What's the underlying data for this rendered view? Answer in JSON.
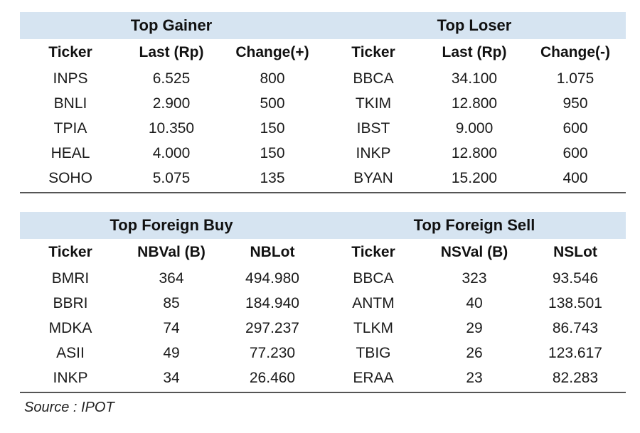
{
  "top_table": {
    "left_title": "Top Gainer",
    "right_title": "Top Loser",
    "headers": [
      "Ticker",
      "Last (Rp)",
      "Change(+)",
      "Ticker",
      "Last (Rp)",
      "Change(-)"
    ],
    "rows": [
      [
        "INPS",
        "6.525",
        "800",
        "BBCA",
        "34.100",
        "1.075"
      ],
      [
        "BNLI",
        "2.900",
        "500",
        "TKIM",
        "12.800",
        "950"
      ],
      [
        "TPIA",
        "10.350",
        "150",
        "IBST",
        "9.000",
        "600"
      ],
      [
        "HEAL",
        "4.000",
        "150",
        "INKP",
        "12.800",
        "600"
      ],
      [
        "SOHO",
        "5.075",
        "135",
        "BYAN",
        "15.200",
        "400"
      ]
    ]
  },
  "bottom_table": {
    "left_title": "Top Foreign Buy",
    "right_title": "Top Foreign Sell",
    "headers": [
      "Ticker",
      "NBVal (B)",
      "NBLot",
      "Ticker",
      "NSVal (B)",
      "NSLot"
    ],
    "rows": [
      [
        "BMRI",
        "364",
        "494.980",
        "BBCA",
        "323",
        "93.546"
      ],
      [
        "BBRI",
        "85",
        "184.940",
        "ANTM",
        "40",
        "138.501"
      ],
      [
        "MDKA",
        "74",
        "297.237",
        "TLKM",
        "29",
        "86.743"
      ],
      [
        "ASII",
        "49",
        "77.230",
        "TBIG",
        "26",
        "123.617"
      ],
      [
        "INKP",
        "34",
        "26.460",
        "ERAA",
        "23",
        "82.283"
      ]
    ]
  },
  "source": "Source : IPOT"
}
